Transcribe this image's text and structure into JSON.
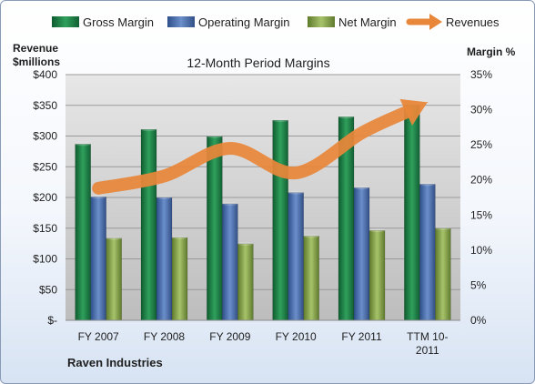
{
  "chart_data": {
    "type": "bar",
    "title": "12-Month Period Margins",
    "company": "Raven Industries",
    "left_axis_label_line1": "Revenue",
    "left_axis_label_line2": "$millions",
    "right_axis_label": "Margin %",
    "categories": [
      [
        "FY 2007"
      ],
      [
        "FY 2008"
      ],
      [
        "FY 2009"
      ],
      [
        "FY 2010"
      ],
      [
        "FY 2011"
      ],
      [
        "TTM 10-",
        "2011"
      ]
    ],
    "left_ticks": [
      "$-",
      "$50",
      "$100",
      "$150",
      "$200",
      "$250",
      "$300",
      "$350",
      "$400"
    ],
    "right_ticks": [
      "0%",
      "5%",
      "10%",
      "15%",
      "20%",
      "25%",
      "30%",
      "35%"
    ],
    "ylim_left": [
      0,
      400
    ],
    "ylim_right": [
      0,
      35
    ],
    "legend_position": "top",
    "grid": true,
    "series": [
      {
        "name": "Gross Margin",
        "kind": "bar",
        "axis": "right",
        "color": "#1f8a4c",
        "values": [
          25.1,
          27.2,
          26.2,
          28.5,
          29.0,
          30.7
        ]
      },
      {
        "name": "Operating Margin",
        "kind": "bar",
        "axis": "right",
        "color": "#4f78b8",
        "values": [
          17.6,
          17.5,
          16.6,
          18.2,
          18.9,
          19.4
        ]
      },
      {
        "name": "Net Margin",
        "kind": "bar",
        "axis": "right",
        "color": "#8eac52",
        "values": [
          11.7,
          11.8,
          10.9,
          12.0,
          12.8,
          13.1
        ]
      },
      {
        "name": "Revenues",
        "kind": "line",
        "axis": "left",
        "color": "#e8873a",
        "values": [
          215,
          235,
          280,
          240,
          305,
          355
        ]
      }
    ]
  }
}
